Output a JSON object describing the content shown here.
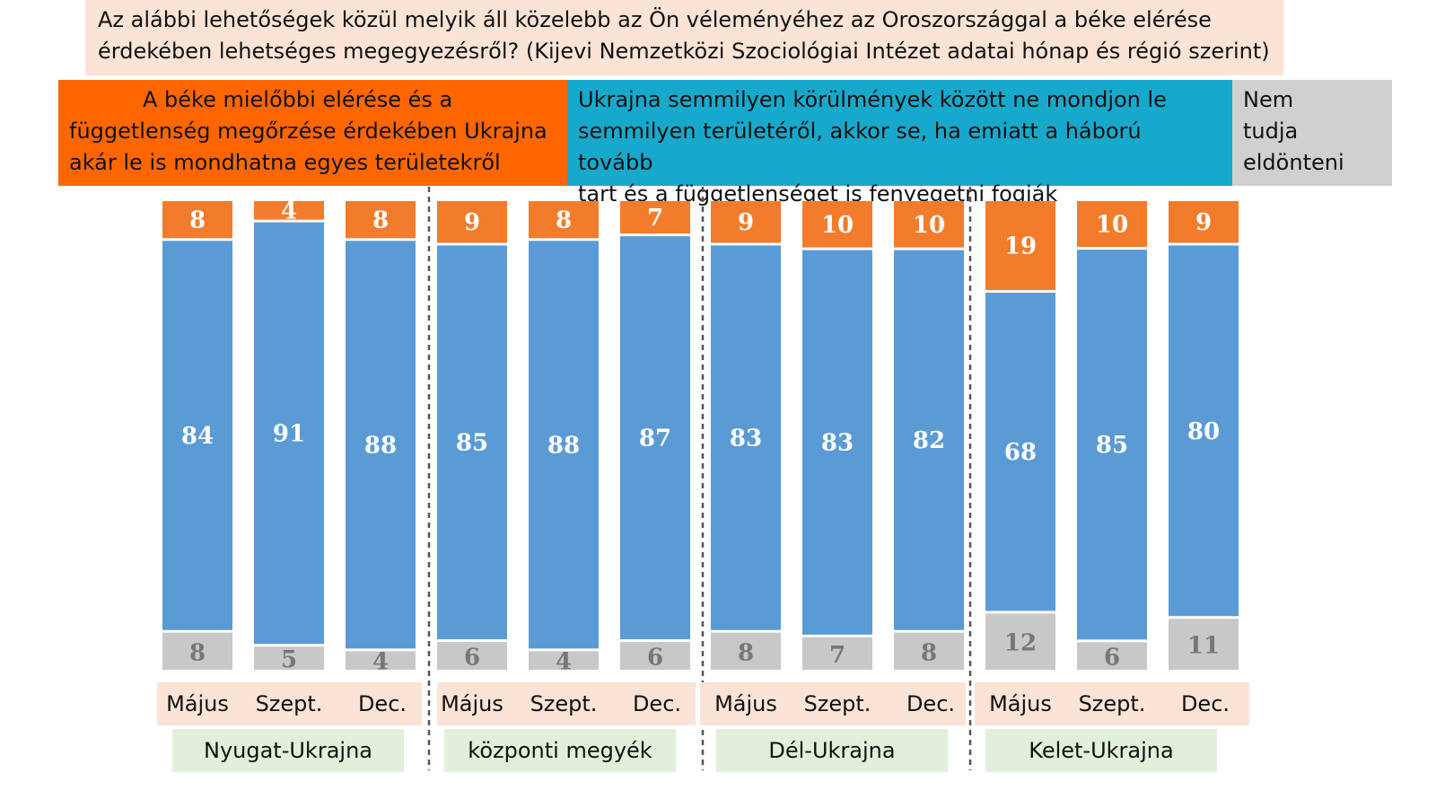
{
  "question": {
    "line1": "Az alábbi lehetőségek közül melyik áll közelebb az Ön véleményéhez az Oroszországgal a béke elérése",
    "line2": "érdekében lehetséges megegyezésről? (Kijevi Nemzetközi Szociológiai Intézet adatai  hónap és régió szerint)"
  },
  "legend": {
    "orange": {
      "color": "#ff6600",
      "line1": "A béke mielőbbi elérése és a",
      "line2": "függetlenség megőrzése érdekében Ukrajna",
      "line3": "akár le is mondhatna egyes területekről"
    },
    "blue": {
      "color": "#17a9cc",
      "line1": "Ukrajna semmilyen körülmények között ne mondjon le",
      "line2": "semmilyen területéről, akkor se, ha emiatt a háború tovább",
      "line3": "tart és a függetlenséget is fenyegetni fogják"
    },
    "gray": {
      "color": "#d0d0d0",
      "line1": "Nem",
      "line2": "tudja",
      "line3": "eldönteni"
    }
  },
  "chart_data": {
    "type": "bar",
    "stacked": true,
    "orientation": "vertical",
    "colors": {
      "orange": "#f27c2b",
      "blue": "#5b9bd5",
      "gray": "#c8c8c8"
    },
    "groups": [
      {
        "region": "Nyugat-Ukrajna",
        "months": [
          "Május",
          "Szept.",
          "Dec."
        ],
        "orange": [
          8,
          4,
          8
        ],
        "blue": [
          84,
          91,
          88
        ],
        "gray": [
          8,
          5,
          4
        ]
      },
      {
        "region": "központi megyék",
        "months": [
          "Május",
          "Szept.",
          "Dec."
        ],
        "orange": [
          9,
          8,
          7
        ],
        "blue": [
          85,
          88,
          87
        ],
        "gray": [
          6,
          4,
          6
        ]
      },
      {
        "region": "Dél-Ukrajna",
        "months": [
          "Május",
          "Szept.",
          "Dec."
        ],
        "orange": [
          9,
          10,
          10
        ],
        "blue": [
          83,
          83,
          82
        ],
        "gray": [
          8,
          7,
          8
        ]
      },
      {
        "region": "Kelet-Ukrajna",
        "months": [
          "Május",
          "Szept.",
          "Dec."
        ],
        "orange": [
          19,
          10,
          9
        ],
        "blue": [
          68,
          85,
          80
        ],
        "gray": [
          12,
          6,
          11
        ]
      }
    ]
  }
}
